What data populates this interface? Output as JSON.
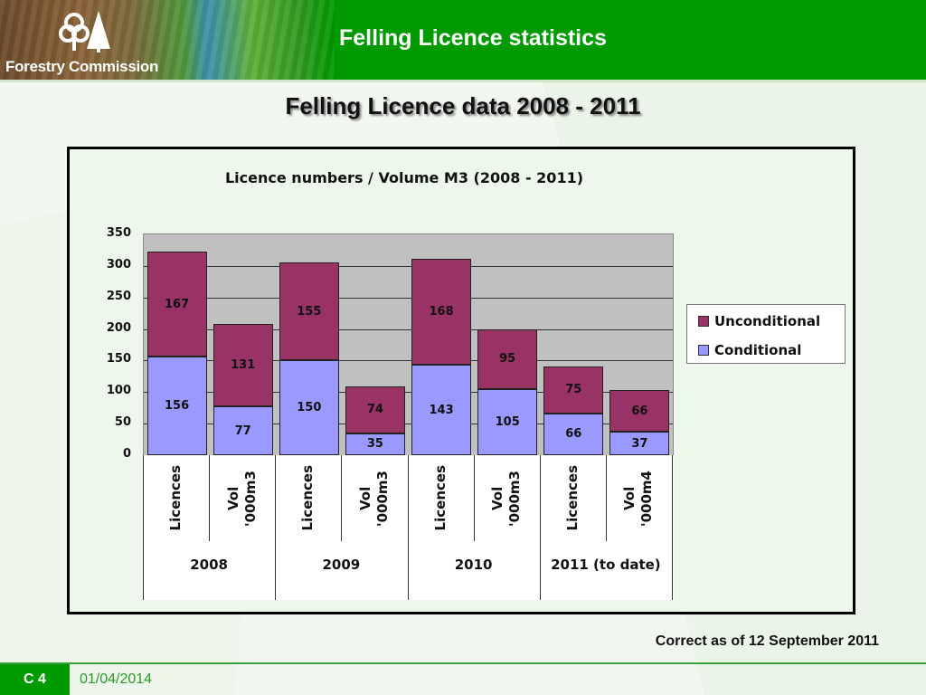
{
  "header": {
    "logo_text": "Forestry Commission",
    "title": "Felling Licence statistics"
  },
  "slide": {
    "title": "Felling Licence data 2008 - 2011",
    "note": "Correct as of 12 September 2011"
  },
  "footer": {
    "slide_tag": "C 4",
    "date": "01/04/2014"
  },
  "colors": {
    "brand_green": "#019a00",
    "unconditional": "#993366",
    "conditional": "#9999ff",
    "plot_bg": "#c0c0c0"
  },
  "chart_data": {
    "type": "bar",
    "stacked": true,
    "title": "Licence numbers / Volume M3 (2008 - 2011)",
    "xlabel": "",
    "ylabel": "",
    "ylim": [
      0,
      350
    ],
    "yticks": [
      "350",
      "300",
      "250",
      "200",
      "150",
      "100",
      "50",
      "0"
    ],
    "grid": true,
    "legend_position": "right",
    "categories": [
      "Licences",
      "Vol '000m3",
      "Licences",
      "Vol '000m3",
      "Licences",
      "Vol '000m3",
      "Licences",
      "Vol '000m4"
    ],
    "groups": [
      "2008",
      "2009",
      "2010",
      "2011 (to date)"
    ],
    "series": [
      {
        "name": "Conditional",
        "values": [
          156,
          77,
          150,
          35,
          143,
          105,
          66,
          37
        ]
      },
      {
        "name": "Unconditional",
        "values": [
          167,
          131,
          155,
          74,
          168,
          95,
          75,
          66
        ]
      }
    ],
    "legend": [
      "Unconditional",
      "Conditional"
    ]
  }
}
